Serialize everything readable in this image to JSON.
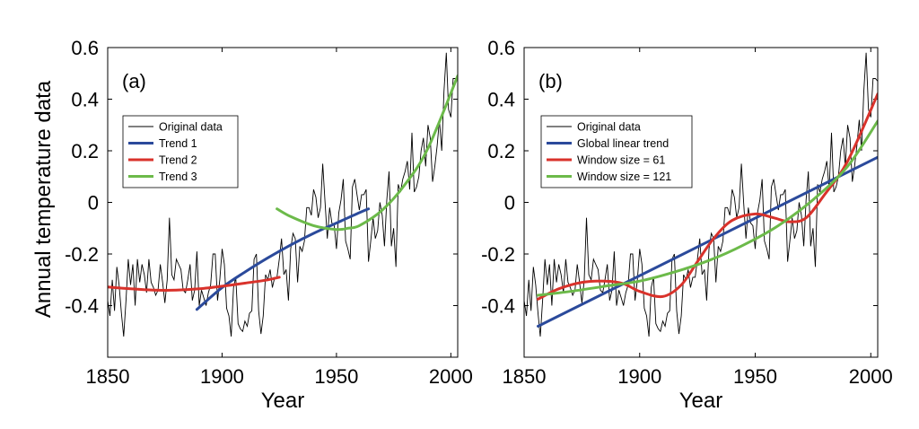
{
  "figure": {
    "ylabel": "Annual temperature data",
    "xlabel": "Year"
  },
  "chart_data": [
    {
      "type": "line",
      "panel_label": "(a)",
      "xlabel": "Year",
      "ylabel": "Annual temperature data",
      "xlim": [
        1850,
        2003
      ],
      "ylim": [
        -0.6,
        0.6
      ],
      "xticks": [
        1850,
        1900,
        1950,
        2000
      ],
      "yticks": [
        -0.4,
        -0.2,
        0,
        0.2,
        0.4,
        0.6
      ],
      "ytick_labels": [
        "-0.4",
        "-0.2",
        "0",
        "0.2",
        "0.4",
        "0.6"
      ],
      "grid": false,
      "legend_position": "upper-left",
      "series": [
        {
          "name": "Original data",
          "color": "#000000",
          "role": "raw"
        },
        {
          "name": "Trend 1",
          "color": "#2b4a9b",
          "x": [
            1889,
            1900,
            1910,
            1920,
            1930,
            1940,
            1950,
            1960,
            1964
          ],
          "y": [
            -0.415,
            -0.33,
            -0.27,
            -0.215,
            -0.165,
            -0.12,
            -0.08,
            -0.04,
            -0.025
          ]
        },
        {
          "name": "Trend 2",
          "color": "#d9322b",
          "x": [
            1850,
            1860,
            1870,
            1880,
            1890,
            1900,
            1910,
            1920,
            1925
          ],
          "y": [
            -0.328,
            -0.335,
            -0.34,
            -0.34,
            -0.335,
            -0.325,
            -0.313,
            -0.3,
            -0.29
          ]
        },
        {
          "name": "Trend 3",
          "color": "#6cba4a",
          "x": [
            1924,
            1930,
            1940,
            1950,
            1955,
            1960,
            1970,
            1980,
            1990,
            2003
          ],
          "y": [
            -0.025,
            -0.055,
            -0.09,
            -0.105,
            -0.1,
            -0.09,
            -0.03,
            0.07,
            0.21,
            0.49
          ]
        }
      ]
    },
    {
      "type": "line",
      "panel_label": "(b)",
      "xlabel": "Year",
      "ylabel": "",
      "xlim": [
        1850,
        2003
      ],
      "ylim": [
        -0.6,
        0.6
      ],
      "xticks": [
        1850,
        1900,
        1950,
        2000
      ],
      "yticks": [
        -0.4,
        -0.2,
        0,
        0.2,
        0.4,
        0.6
      ],
      "ytick_labels": [
        "-0.4",
        "-0.2",
        "0",
        "0.2",
        "0.4",
        "0.6"
      ],
      "grid": false,
      "legend_position": "upper-left",
      "series": [
        {
          "name": "Original data",
          "color": "#000000",
          "role": "raw"
        },
        {
          "name": "Global linear trend",
          "color": "#2b4a9b",
          "x": [
            1856,
            2003
          ],
          "y": [
            -0.48,
            0.175
          ]
        },
        {
          "name": "Window size = 61",
          "color": "#d9322b",
          "x": [
            1856,
            1865,
            1875,
            1885,
            1893,
            1900,
            1910,
            1918,
            1925,
            1932,
            1940,
            1950,
            1958,
            1965,
            1972,
            1980,
            1990,
            2003
          ],
          "y": [
            -0.375,
            -0.335,
            -0.31,
            -0.305,
            -0.315,
            -0.345,
            -0.365,
            -0.32,
            -0.23,
            -0.14,
            -0.07,
            -0.045,
            -0.06,
            -0.075,
            -0.06,
            0.03,
            0.16,
            0.42
          ]
        },
        {
          "name": "Window size = 121",
          "color": "#6cba4a",
          "x": [
            1856,
            1870,
            1885,
            1900,
            1915,
            1930,
            1945,
            1960,
            1975,
            1990,
            2003
          ],
          "y": [
            -0.36,
            -0.345,
            -0.325,
            -0.305,
            -0.27,
            -0.225,
            -0.165,
            -0.09,
            0.01,
            0.14,
            0.315
          ]
        }
      ]
    }
  ],
  "raw_series": {
    "name": "Original data",
    "x": [
      1850,
      1851,
      1852,
      1853,
      1854,
      1855,
      1856,
      1857,
      1858,
      1859,
      1860,
      1861,
      1862,
      1863,
      1864,
      1865,
      1866,
      1867,
      1868,
      1869,
      1870,
      1871,
      1872,
      1873,
      1874,
      1875,
      1876,
      1877,
      1878,
      1879,
      1880,
      1881,
      1882,
      1883,
      1884,
      1885,
      1886,
      1887,
      1888,
      1889,
      1890,
      1891,
      1892,
      1893,
      1894,
      1895,
      1896,
      1897,
      1898,
      1899,
      1900,
      1901,
      1902,
      1903,
      1904,
      1905,
      1906,
      1907,
      1908,
      1909,
      1910,
      1911,
      1912,
      1913,
      1914,
      1915,
      1916,
      1917,
      1918,
      1919,
      1920,
      1921,
      1922,
      1923,
      1924,
      1925,
      1926,
      1927,
      1928,
      1929,
      1930,
      1931,
      1932,
      1933,
      1934,
      1935,
      1936,
      1937,
      1938,
      1939,
      1940,
      1941,
      1942,
      1943,
      1944,
      1945,
      1946,
      1947,
      1948,
      1949,
      1950,
      1951,
      1952,
      1953,
      1954,
      1955,
      1956,
      1957,
      1958,
      1959,
      1960,
      1961,
      1962,
      1963,
      1964,
      1965,
      1966,
      1967,
      1968,
      1969,
      1970,
      1971,
      1972,
      1973,
      1974,
      1975,
      1976,
      1977,
      1978,
      1979,
      1980,
      1981,
      1982,
      1983,
      1984,
      1985,
      1986,
      1987,
      1988,
      1989,
      1990,
      1991,
      1992,
      1993,
      1994,
      1995,
      1996,
      1997,
      1998,
      1999,
      2000,
      2001,
      2002,
      2003
    ],
    "y": [
      -0.38,
      -0.44,
      -0.3,
      -0.42,
      -0.25,
      -0.32,
      -0.43,
      -0.52,
      -0.38,
      -0.22,
      -0.32,
      -0.24,
      -0.4,
      -0.22,
      -0.31,
      -0.24,
      -0.28,
      -0.35,
      -0.22,
      -0.31,
      -0.33,
      -0.36,
      -0.34,
      -0.24,
      -0.31,
      -0.39,
      -0.3,
      -0.06,
      -0.28,
      -0.3,
      -0.22,
      -0.24,
      -0.26,
      -0.34,
      -0.35,
      -0.3,
      -0.24,
      -0.38,
      -0.34,
      -0.19,
      -0.4,
      -0.34,
      -0.37,
      -0.4,
      -0.35,
      -0.32,
      -0.2,
      -0.2,
      -0.38,
      -0.3,
      -0.18,
      -0.24,
      -0.41,
      -0.44,
      -0.52,
      -0.33,
      -0.29,
      -0.47,
      -0.49,
      -0.5,
      -0.46,
      -0.48,
      -0.43,
      -0.42,
      -0.22,
      -0.2,
      -0.42,
      -0.51,
      -0.44,
      -0.28,
      -0.3,
      -0.26,
      -0.33,
      -0.29,
      -0.29,
      -0.22,
      -0.14,
      -0.28,
      -0.26,
      -0.38,
      -0.18,
      -0.12,
      -0.14,
      -0.31,
      -0.17,
      -0.19,
      -0.15,
      -0.02,
      -0.02,
      -0.05,
      0.05,
      0.02,
      -0.06,
      -0.02,
      0.15,
      0.0,
      -0.14,
      -0.02,
      -0.08,
      -0.09,
      -0.18,
      -0.04,
      0.01,
      0.09,
      -0.15,
      -0.18,
      -0.22,
      0.06,
      0.09,
      0.03,
      -0.03,
      0.03,
      0.03,
      0.05,
      -0.23,
      -0.15,
      -0.06,
      -0.14,
      -0.11,
      -0.0,
      -0.05,
      -0.17,
      0.01,
      0.12,
      -0.17,
      -0.1,
      -0.25,
      0.07,
      0.04,
      0.09,
      0.12,
      0.16,
      0.05,
      0.27,
      0.04,
      0.06,
      0.1,
      0.2,
      0.25,
      0.14,
      0.3,
      0.25,
      0.08,
      0.14,
      0.22,
      0.32,
      0.2,
      0.43,
      0.58,
      0.36,
      0.33,
      0.48,
      0.48,
      0.47
    ]
  }
}
